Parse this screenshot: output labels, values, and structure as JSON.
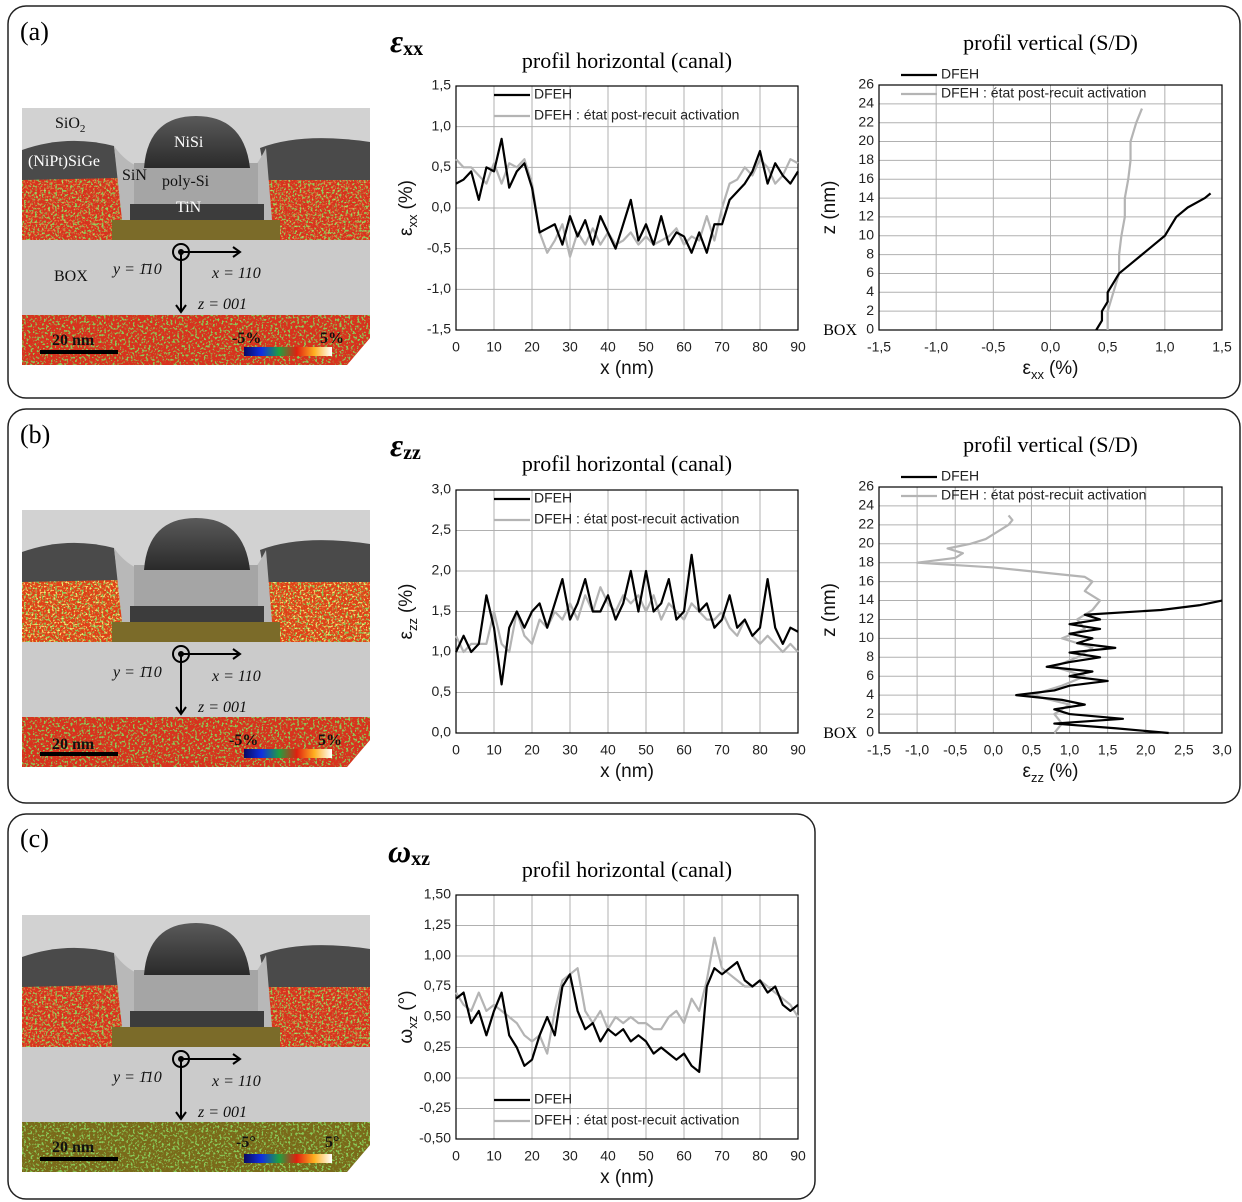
{
  "panels": [
    {
      "label": "(a)",
      "heading": {
        "symbol": "ε",
        "sub": "xx"
      },
      "image_labels": {
        "sio2": [
          "SiO",
          "2"
        ],
        "sige": "(NiPt)SiGe",
        "sin": "SiN",
        "nisi": "NiSi",
        "polysi": "poly-Si",
        "tin": "TiN",
        "box": "BOX",
        "y_axis": "y = 1̄10",
        "x_axis": "x = 110",
        "z_axis": "z = 001",
        "scale": "20 nm",
        "cmin": "-5%",
        "cmax": "5%"
      }
    },
    {
      "label": "(b)",
      "heading": {
        "symbol": "ε",
        "sub": "zz"
      },
      "image_labels": {
        "y_axis": "y = 1̄10",
        "x_axis": "x = 110",
        "z_axis": "z = 001",
        "scale": "20 nm",
        "cmin": "-5%",
        "cmax": "5%"
      }
    },
    {
      "label": "(c)",
      "heading": {
        "symbol": "ω",
        "sub": "xz"
      },
      "image_labels": {
        "y_axis": "y = 1̄10",
        "x_axis": "x = 110",
        "z_axis": "z = 001",
        "scale": "20 nm",
        "cmin": "-5°",
        "cmax": "5°"
      }
    }
  ],
  "chart_data": [
    {
      "type": "line",
      "title": "profil horizontal (canal)",
      "xlabel": "x (nm)",
      "ylabel": {
        "symbol": "ε",
        "sub": "xx",
        "unit": "(%)"
      },
      "grid": true,
      "legend": "upper left",
      "xlim": [
        0,
        90
      ],
      "xticks": [
        0,
        10,
        20,
        30,
        40,
        50,
        60,
        70,
        80,
        90
      ],
      "ylim": [
        -1.5,
        1.5
      ],
      "yticks": [
        {
          "value": -1.5,
          "label": "-1,5"
        },
        {
          "value": -1,
          "label": "-1,0"
        },
        {
          "value": -0.5,
          "label": "-0,5"
        },
        {
          "value": 0,
          "label": "0,0"
        },
        {
          "value": 0.5,
          "label": "0,5"
        },
        {
          "value": 1,
          "label": "1,0"
        },
        {
          "value": 1.5,
          "label": "1,5"
        }
      ],
      "x": [
        0,
        2,
        4,
        6,
        8,
        10,
        12,
        14,
        16,
        18,
        20,
        22,
        24,
        26,
        28,
        30,
        32,
        34,
        36,
        38,
        40,
        42,
        44,
        46,
        48,
        50,
        52,
        54,
        56,
        58,
        60,
        62,
        64,
        66,
        68,
        70,
        72,
        74,
        76,
        78,
        80,
        82,
        84,
        86,
        88,
        90
      ],
      "series": [
        {
          "name": "DFEH",
          "color": "#000000",
          "values": [
            0.3,
            0.35,
            0.45,
            0.1,
            0.5,
            0.45,
            0.85,
            0.25,
            0.45,
            0.55,
            0.25,
            -0.3,
            -0.25,
            -0.2,
            -0.45,
            -0.1,
            -0.35,
            -0.15,
            -0.45,
            -0.1,
            -0.3,
            -0.5,
            -0.2,
            0.1,
            -0.4,
            -0.2,
            -0.45,
            -0.1,
            -0.45,
            -0.3,
            -0.35,
            -0.55,
            -0.3,
            -0.55,
            -0.2,
            -0.2,
            0.1,
            0.2,
            0.3,
            0.45,
            0.7,
            0.3,
            0.55,
            0.4,
            0.3,
            0.45
          ]
        },
        {
          "name": "DFEH : état post-recuit activation",
          "color": "#b4b4b4",
          "values": [
            0.6,
            0.5,
            0.5,
            0.4,
            0.3,
            0.55,
            0.3,
            0.55,
            0.5,
            0.6,
            0.3,
            -0.3,
            -0.55,
            -0.4,
            -0.2,
            -0.6,
            -0.3,
            -0.45,
            -0.25,
            -0.45,
            -0.3,
            -0.45,
            -0.4,
            -0.3,
            -0.45,
            -0.35,
            -0.45,
            -0.4,
            -0.35,
            -0.25,
            -0.45,
            -0.35,
            -0.4,
            -0.1,
            -0.4,
            0.0,
            0.3,
            0.35,
            0.5,
            0.4,
            0.6,
            0.5,
            0.3,
            0.4,
            0.6,
            0.55
          ]
        }
      ]
    },
    {
      "type": "line",
      "title": "profil vertical (S/D)",
      "xlabel": {
        "symbol": "ε",
        "sub": "xx",
        "unit": "(%)"
      },
      "ylabel": "z (nm)",
      "annotation": "BOX",
      "grid": true,
      "legend": "upper left",
      "xlim": [
        -1.5,
        1.5
      ],
      "xticks": [
        {
          "value": -1.5,
          "label": "-1,5"
        },
        {
          "value": -1,
          "label": "-1,0"
        },
        {
          "value": -0.5,
          "label": "-0,5"
        },
        {
          "value": 0,
          "label": "0,0"
        },
        {
          "value": 0.5,
          "label": "0,5"
        },
        {
          "value": 1,
          "label": "1,0"
        },
        {
          "value": 1.5,
          "label": "1,5"
        }
      ],
      "ylim": [
        0,
        26
      ],
      "yticks": [
        0,
        2,
        4,
        6,
        8,
        10,
        12,
        14,
        16,
        18,
        20,
        22,
        24,
        26
      ],
      "series": [
        {
          "name": "DFEH",
          "color": "#000000",
          "y": [
            0,
            1,
            2,
            3,
            4,
            5,
            6,
            7,
            8,
            9,
            10,
            11,
            12,
            13,
            14,
            14.5
          ],
          "values": [
            0.4,
            0.45,
            0.45,
            0.5,
            0.5,
            0.55,
            0.6,
            0.7,
            0.8,
            0.9,
            1.0,
            1.05,
            1.1,
            1.2,
            1.35,
            1.4
          ]
        },
        {
          "name": "DFEH : état post-recuit activation",
          "color": "#b4b4b4",
          "y": [
            0,
            2,
            4,
            6,
            8,
            10,
            12,
            14,
            16,
            18,
            20,
            22,
            23.5
          ],
          "values": [
            0.5,
            0.5,
            0.55,
            0.6,
            0.6,
            0.62,
            0.65,
            0.65,
            0.68,
            0.7,
            0.7,
            0.75,
            0.8
          ]
        }
      ]
    },
    {
      "type": "line",
      "title": "profil horizontal (canal)",
      "xlabel": "x (nm)",
      "ylabel": {
        "symbol": "ε",
        "sub": "zz",
        "unit": "(%)"
      },
      "grid": true,
      "legend": "upper left",
      "xlim": [
        0,
        90
      ],
      "xticks": [
        0,
        10,
        20,
        30,
        40,
        50,
        60,
        70,
        80,
        90
      ],
      "ylim": [
        0,
        3
      ],
      "yticks": [
        {
          "value": 0,
          "label": "0,0"
        },
        {
          "value": 0.5,
          "label": "0,5"
        },
        {
          "value": 1,
          "label": "1,0"
        },
        {
          "value": 1.5,
          "label": "1,5"
        },
        {
          "value": 2,
          "label": "2,0"
        },
        {
          "value": 2.5,
          "label": "2,5"
        },
        {
          "value": 3,
          "label": "3,0"
        }
      ],
      "x": [
        0,
        2,
        4,
        6,
        8,
        10,
        12,
        14,
        16,
        18,
        20,
        22,
        24,
        26,
        28,
        30,
        32,
        34,
        36,
        38,
        40,
        42,
        44,
        46,
        48,
        50,
        52,
        54,
        56,
        58,
        60,
        62,
        64,
        66,
        68,
        70,
        72,
        74,
        76,
        78,
        80,
        82,
        84,
        86,
        88,
        90
      ],
      "series": [
        {
          "name": "DFEH",
          "color": "#000000",
          "values": [
            1.0,
            1.2,
            1.0,
            1.1,
            1.7,
            1.3,
            0.6,
            1.3,
            1.5,
            1.3,
            1.5,
            1.6,
            1.3,
            1.6,
            1.9,
            1.4,
            1.6,
            1.9,
            1.5,
            1.5,
            1.7,
            1.4,
            1.6,
            2.0,
            1.5,
            2.0,
            1.5,
            1.6,
            1.9,
            1.4,
            1.5,
            2.2,
            1.5,
            1.6,
            1.3,
            1.4,
            1.7,
            1.3,
            1.4,
            1.2,
            1.3,
            1.9,
            1.3,
            1.1,
            1.3,
            1.25
          ]
        },
        {
          "name": "DFEH : état post-recuit activation",
          "color": "#b4b4b4",
          "values": [
            1.2,
            1.0,
            1.1,
            1.1,
            1.1,
            1.5,
            1.1,
            1.0,
            1.5,
            1.2,
            1.1,
            1.4,
            1.3,
            1.5,
            1.4,
            1.6,
            1.4,
            1.7,
            1.5,
            1.8,
            1.6,
            1.5,
            1.7,
            1.6,
            1.7,
            1.5,
            1.7,
            1.4,
            1.6,
            1.5,
            1.4,
            1.6,
            1.5,
            1.4,
            1.4,
            1.5,
            1.3,
            1.2,
            1.4,
            1.2,
            1.1,
            1.2,
            1.1,
            1.0,
            1.1,
            1.0
          ]
        }
      ]
    },
    {
      "type": "line",
      "title": "profil vertical (S/D)",
      "xlabel": {
        "symbol": "ε",
        "sub": "zz",
        "unit": "(%)"
      },
      "ylabel": "z (nm)",
      "annotation": "BOX",
      "grid": true,
      "legend": "upper left",
      "xlim": [
        -1.5,
        3
      ],
      "xticks": [
        {
          "value": -1.5,
          "label": "-1,5"
        },
        {
          "value": -1,
          "label": "-1,0"
        },
        {
          "value": -0.5,
          "label": "-0,5"
        },
        {
          "value": 0,
          "label": "0,0"
        },
        {
          "value": 0.5,
          "label": "0,5"
        },
        {
          "value": 1,
          "label": "1,0"
        },
        {
          "value": 1.5,
          "label": "1,5"
        },
        {
          "value": 2,
          "label": "2,0"
        },
        {
          "value": 2.5,
          "label": "2,5"
        },
        {
          "value": 3,
          "label": "3,0"
        }
      ],
      "ylim": [
        0,
        26
      ],
      "yticks": [
        0,
        2,
        4,
        6,
        8,
        10,
        12,
        14,
        16,
        18,
        20,
        22,
        24,
        26
      ],
      "series": [
        {
          "name": "DFEH",
          "color": "#000000",
          "y": [
            0,
            0.5,
            1,
            1.5,
            2,
            2.5,
            3,
            3.5,
            4,
            4.5,
            5,
            5.5,
            6,
            6.5,
            7,
            7.5,
            8,
            8.5,
            9,
            9.5,
            10,
            10.5,
            11,
            11.5,
            12,
            12.5,
            13,
            13.5,
            14
          ],
          "values": [
            2.3,
            1.6,
            0.8,
            1.7,
            1.0,
            0.8,
            1.2,
            0.9,
            0.3,
            0.8,
            1.0,
            1.5,
            1.0,
            1.3,
            0.7,
            1.0,
            1.4,
            1.0,
            1.6,
            1.1,
            1.3,
            1.0,
            1.4,
            1.0,
            1.4,
            1.2,
            2.2,
            2.7,
            3.0
          ]
        },
        {
          "name": "DFEH : état post-recuit activation",
          "color": "#b4b4b4",
          "y": [
            0,
            1,
            2,
            3,
            4,
            5,
            6,
            7,
            8,
            9,
            10,
            11,
            12,
            13,
            14,
            15,
            16,
            16.5,
            17,
            17.5,
            18,
            18.5,
            19,
            19.5,
            20,
            20.5,
            21,
            21.5,
            22,
            22.5,
            23
          ],
          "values": [
            0.8,
            0.9,
            0.8,
            1.0,
            0.5,
            0.9,
            1.2,
            0.8,
            1.1,
            1.3,
            0.9,
            1.2,
            1.1,
            1.3,
            1.4,
            1.2,
            1.3,
            1.2,
            0.6,
            0.0,
            -1.0,
            -0.5,
            -0.4,
            -0.6,
            -0.3,
            -0.1,
            0.0,
            0.1,
            0.2,
            0.25,
            0.2
          ]
        }
      ]
    },
    {
      "type": "line",
      "title": "profil horizontal (canal)",
      "xlabel": "x (nm)",
      "ylabel": {
        "symbol": "ω",
        "sub": "xz",
        "unit": "(°)"
      },
      "grid": true,
      "legend": "lower left",
      "xlim": [
        0,
        90
      ],
      "xticks": [
        0,
        10,
        20,
        30,
        40,
        50,
        60,
        70,
        80,
        90
      ],
      "ylim": [
        -0.5,
        1.5
      ],
      "yticks": [
        {
          "value": -0.5,
          "label": "-0,50"
        },
        {
          "value": -0.25,
          "label": "-0,25"
        },
        {
          "value": 0,
          "label": "0,00"
        },
        {
          "value": 0.25,
          "label": "0,25"
        },
        {
          "value": 0.5,
          "label": "0,50"
        },
        {
          "value": 0.75,
          "label": "0,75"
        },
        {
          "value": 1,
          "label": "1,00"
        },
        {
          "value": 1.25,
          "label": "1,25"
        },
        {
          "value": 1.5,
          "label": "1,50"
        }
      ],
      "x": [
        0,
        2,
        4,
        6,
        8,
        10,
        12,
        14,
        16,
        18,
        20,
        22,
        24,
        26,
        28,
        30,
        32,
        34,
        36,
        38,
        40,
        42,
        44,
        46,
        48,
        50,
        52,
        54,
        56,
        58,
        60,
        62,
        64,
        66,
        68,
        70,
        72,
        74,
        76,
        78,
        80,
        82,
        84,
        86,
        88,
        90
      ],
      "series": [
        {
          "name": "DFEH",
          "color": "#000000",
          "values": [
            0.65,
            0.7,
            0.45,
            0.55,
            0.35,
            0.55,
            0.7,
            0.35,
            0.25,
            0.1,
            0.15,
            0.35,
            0.5,
            0.35,
            0.75,
            0.85,
            0.55,
            0.4,
            0.45,
            0.3,
            0.4,
            0.35,
            0.4,
            0.3,
            0.35,
            0.3,
            0.2,
            0.25,
            0.2,
            0.15,
            0.2,
            0.1,
            0.05,
            0.75,
            0.9,
            0.85,
            0.9,
            0.95,
            0.8,
            0.75,
            0.8,
            0.7,
            0.75,
            0.6,
            0.55,
            0.6
          ]
        },
        {
          "name": "DFEH : état post-recuit activation",
          "color": "#b4b4b4",
          "values": [
            0.7,
            0.6,
            0.55,
            0.7,
            0.55,
            0.6,
            0.55,
            0.5,
            0.45,
            0.35,
            0.3,
            0.35,
            0.2,
            0.55,
            0.8,
            0.85,
            0.9,
            0.55,
            0.45,
            0.55,
            0.4,
            0.5,
            0.45,
            0.5,
            0.45,
            0.45,
            0.4,
            0.4,
            0.5,
            0.55,
            0.45,
            0.65,
            0.55,
            0.8,
            1.15,
            0.9,
            0.85,
            0.8,
            0.75,
            0.75,
            0.8,
            0.75,
            0.7,
            0.65,
            0.6,
            0.5
          ]
        }
      ]
    }
  ]
}
